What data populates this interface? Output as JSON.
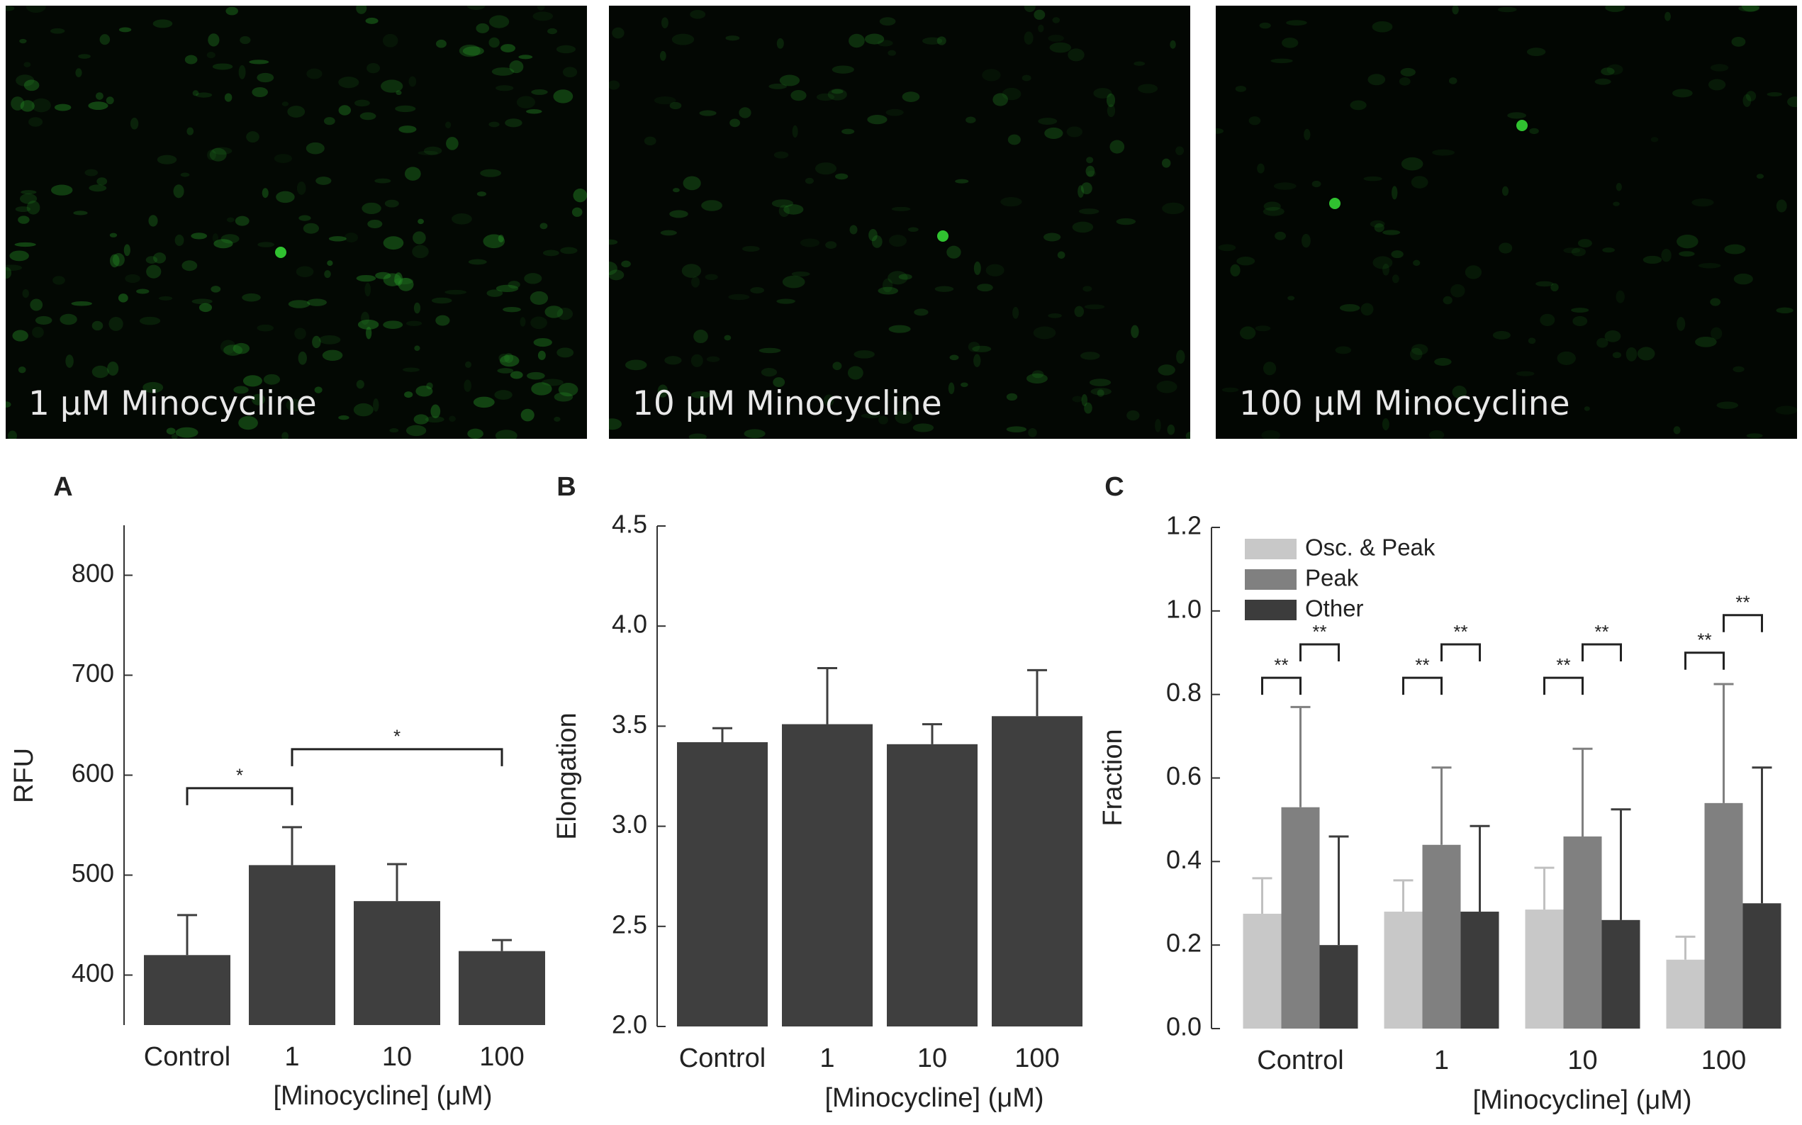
{
  "images": [
    {
      "label": "1 μM Minocycline"
    },
    {
      "label": "10 μM Minocycline"
    },
    {
      "label": "100 μM Minocycline"
    }
  ],
  "chart_data": [
    {
      "type": "bar",
      "label": "A",
      "ylabel": "RFU",
      "xlabel": "[Minocycline] (μM)",
      "categories": [
        "Control",
        "1",
        "10",
        "100"
      ],
      "values": [
        420,
        510,
        474,
        424
      ],
      "errors": [
        40,
        38,
        37,
        11
      ],
      "color": "#3f3f3f",
      "ylim": [
        350,
        850
      ],
      "yticks": [
        400,
        500,
        600,
        700,
        800
      ],
      "significance": [
        {
          "from": 0,
          "to": 1,
          "level": 587,
          "label": "*"
        },
        {
          "from": 1,
          "to": 3,
          "level": 626,
          "label": "*"
        }
      ]
    },
    {
      "type": "bar",
      "label": "B",
      "ylabel": "Elongation",
      "xlabel": "[Minocycline] (μM)",
      "categories": [
        "Control",
        "1",
        "10",
        "100"
      ],
      "values": [
        3.42,
        3.51,
        3.41,
        3.55
      ],
      "errors": [
        0.07,
        0.28,
        0.1,
        0.23
      ],
      "color": "#3f3f3f",
      "ylim": [
        2,
        4.5
      ],
      "yticks": [
        {
          "value": 2,
          "label": "2.0"
        },
        2.5,
        {
          "value": 3,
          "label": "3.0"
        },
        3.5,
        {
          "value": 4,
          "label": "4.0"
        },
        4.5
      ]
    },
    {
      "type": "bar",
      "label": "C",
      "ylabel": "Fraction",
      "xlabel": "[Minocycline] (μM)",
      "categories": [
        "Control",
        "1",
        "10",
        "100"
      ],
      "series": [
        {
          "name": "Osc. & Peak",
          "color": "#c8c8c8",
          "values": [
            0.275,
            0.28,
            0.285,
            0.165
          ],
          "errors": [
            0.085,
            0.075,
            0.1,
            0.055
          ]
        },
        {
          "name": "Peak",
          "color": "#808080",
          "values": [
            0.53,
            0.44,
            0.46,
            0.54
          ],
          "errors": [
            0.24,
            0.185,
            0.21,
            0.285
          ]
        },
        {
          "name": "Other",
          "color": "#3c3c3c",
          "values": [
            0.2,
            0.28,
            0.26,
            0.3
          ],
          "errors": [
            0.26,
            0.205,
            0.265,
            0.325
          ]
        }
      ],
      "legend": "upper left",
      "ylim": [
        0,
        1.2
      ],
      "yticks": [
        {
          "value": 0,
          "label": "0.0"
        },
        0.2,
        0.4,
        0.6,
        0.8,
        {
          "value": 1,
          "label": "1.0"
        },
        1.2
      ],
      "significance": [
        {
          "category": 0,
          "from": 0,
          "to": 1,
          "level": 0.84,
          "label": "**"
        },
        {
          "category": 0,
          "from": 1,
          "to": 2,
          "level": 0.92,
          "label": "**"
        },
        {
          "category": 1,
          "from": 0,
          "to": 1,
          "level": 0.84,
          "label": "**"
        },
        {
          "category": 1,
          "from": 1,
          "to": 2,
          "level": 0.92,
          "label": "**"
        },
        {
          "category": 2,
          "from": 0,
          "to": 1,
          "level": 0.84,
          "label": "**"
        },
        {
          "category": 2,
          "from": 1,
          "to": 2,
          "level": 0.92,
          "label": "**"
        },
        {
          "category": 3,
          "from": 0,
          "to": 1,
          "level": 0.9,
          "label": "**"
        },
        {
          "category": 3,
          "from": 1,
          "to": 2,
          "level": 0.99,
          "label": "**"
        }
      ]
    }
  ]
}
